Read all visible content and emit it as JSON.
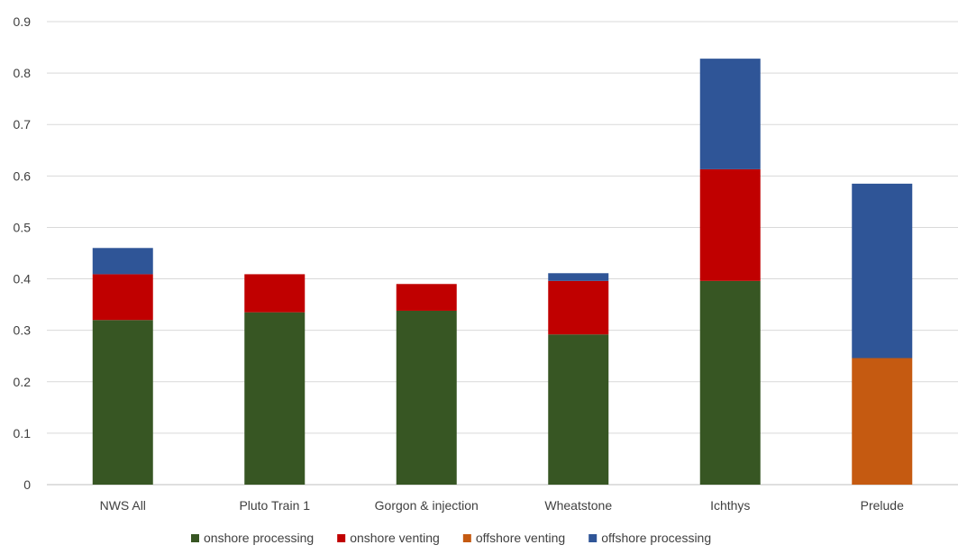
{
  "chart_data": {
    "type": "bar",
    "stacked": true,
    "title": "",
    "xlabel": "",
    "ylabel": "",
    "categories": [
      "NWS All",
      "Pluto Train 1",
      "Gorgon & injection",
      "Wheatstone",
      "Ichthys",
      "Prelude"
    ],
    "ylim": [
      0,
      0.9
    ],
    "yticks": [
      0,
      0.1,
      0.2,
      0.3,
      0.4,
      0.5,
      0.6,
      0.7,
      0.8,
      0.9
    ],
    "ytick_labels": [
      "0",
      "0.1",
      "0.2",
      "0.3",
      "0.4",
      "0.5",
      "0.6",
      "0.7",
      "0.8",
      "0.9"
    ],
    "grid": true,
    "legend_position": "bottom",
    "series": [
      {
        "name": "onshore processing",
        "color": "#375623",
        "values": [
          0.32,
          0.335,
          0.338,
          0.292,
          0.396,
          0
        ]
      },
      {
        "name": "onshore venting",
        "color": "#C00000",
        "values": [
          0.089,
          0.074,
          0.052,
          0.104,
          0.217,
          0
        ]
      },
      {
        "name": "offshore venting",
        "color": "#C55A11",
        "values": [
          0,
          0,
          0,
          0,
          0,
          0.246
        ]
      },
      {
        "name": "offshore processing",
        "color": "#2F5597",
        "values": [
          0.051,
          0,
          0,
          0.015,
          0.215,
          0.339
        ]
      }
    ]
  }
}
